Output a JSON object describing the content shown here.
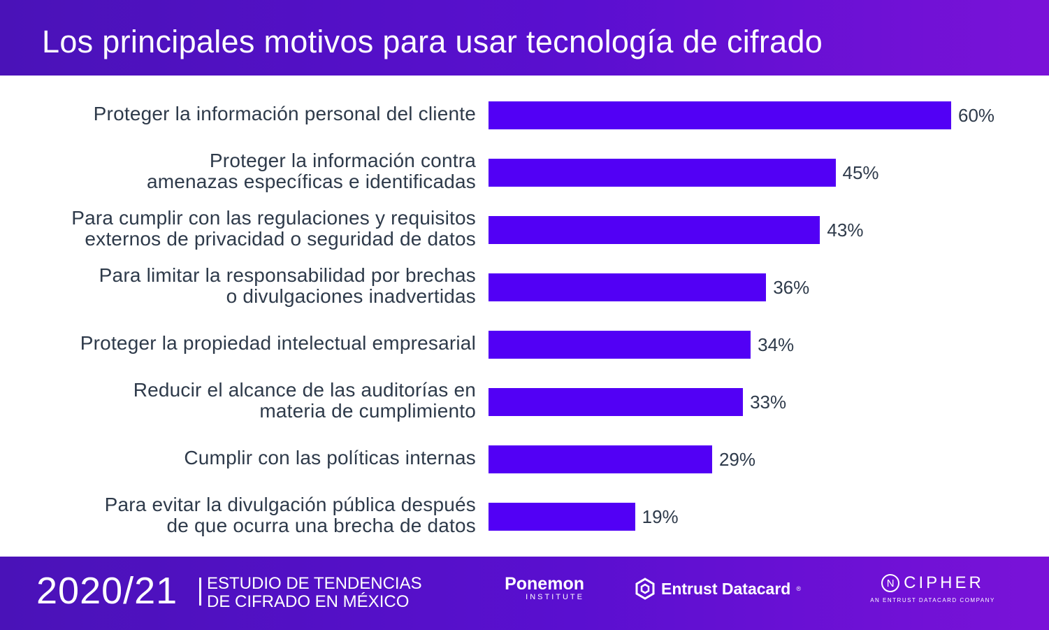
{
  "header": {
    "title": "Los principales motivos para usar tecnología de cifrado"
  },
  "colors": {
    "bar": "#5200f5",
    "header_bg": "#5a0fd0",
    "text": "#2e3a4a"
  },
  "chart_data": {
    "type": "bar",
    "orientation": "horizontal",
    "title": "Los principales motivos para usar tecnología de cifrado",
    "categories": [
      "Proteger la información personal del cliente",
      "Proteger la información contra amenazas específicas e identificadas",
      "Para cumplir con las regulaciones y requisitos externos de privacidad o seguridad de datos",
      "Para limitar la responsabilidad por brechas o divulgaciones inadvertidas",
      "Proteger la propiedad intelectual empresarial",
      "Reducir el alcance de las auditorías en materia de cumplimiento",
      "Cumplir con las políticas internas",
      "Para evitar la divulgación pública después de que ocurra una brecha de datos"
    ],
    "label_lines": [
      [
        "Proteger la información personal del cliente"
      ],
      [
        "Proteger la información contra",
        "amenazas específicas e identificadas"
      ],
      [
        "Para cumplir con las regulaciones y requisitos",
        "externos de privacidad o seguridad de datos"
      ],
      [
        "Para limitar la responsabilidad por brechas",
        "o divulgaciones inadvertidas"
      ],
      [
        "Proteger la propiedad intelectual empresarial"
      ],
      [
        "Reducir el alcance de las auditorías en",
        "materia de cumplimiento"
      ],
      [
        "Cumplir con las políticas internas"
      ],
      [
        "Para evitar la divulgación pública después",
        "de que ocurra una brecha de datos"
      ]
    ],
    "values": [
      60,
      45,
      43,
      36,
      34,
      33,
      29,
      19
    ],
    "value_labels": [
      "60%",
      "45%",
      "43%",
      "36%",
      "34%",
      "33%",
      "29%",
      "19%"
    ],
    "xlim": [
      0,
      60
    ],
    "unit": "%"
  },
  "footer": {
    "year": "2020/21",
    "study_line1": "ESTUDIO DE TENDENCIAS",
    "study_line2": "DE CIFRADO EN MÉXICO",
    "ponemon": "Ponemon",
    "ponemon_sub": "INSTITUTE",
    "entrust": "Entrust Datacard",
    "entrust_mark": "®",
    "ncipher_letter": "N",
    "ncipher": "CIPHER",
    "ncipher_sub": "AN ENTRUST DATACARD COMPANY"
  }
}
